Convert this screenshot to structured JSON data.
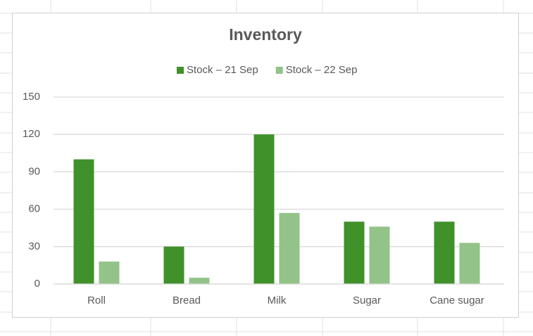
{
  "chart_data": {
    "type": "bar",
    "title": "Inventory",
    "categories": [
      "Roll",
      "Bread",
      "Milk",
      "Sugar",
      "Cane sugar"
    ],
    "series": [
      {
        "name": "Stock – 21 Sep",
        "color": "#40912a",
        "values": [
          100,
          30,
          120,
          50,
          50
        ]
      },
      {
        "name": "Stock – 22 Sep",
        "color": "#93c388",
        "values": [
          18,
          5,
          57,
          46,
          33
        ]
      }
    ],
    "ylim": [
      0,
      150
    ],
    "yticks": [
      0,
      30,
      60,
      90,
      120,
      150
    ],
    "grid": true,
    "legend": "top"
  }
}
